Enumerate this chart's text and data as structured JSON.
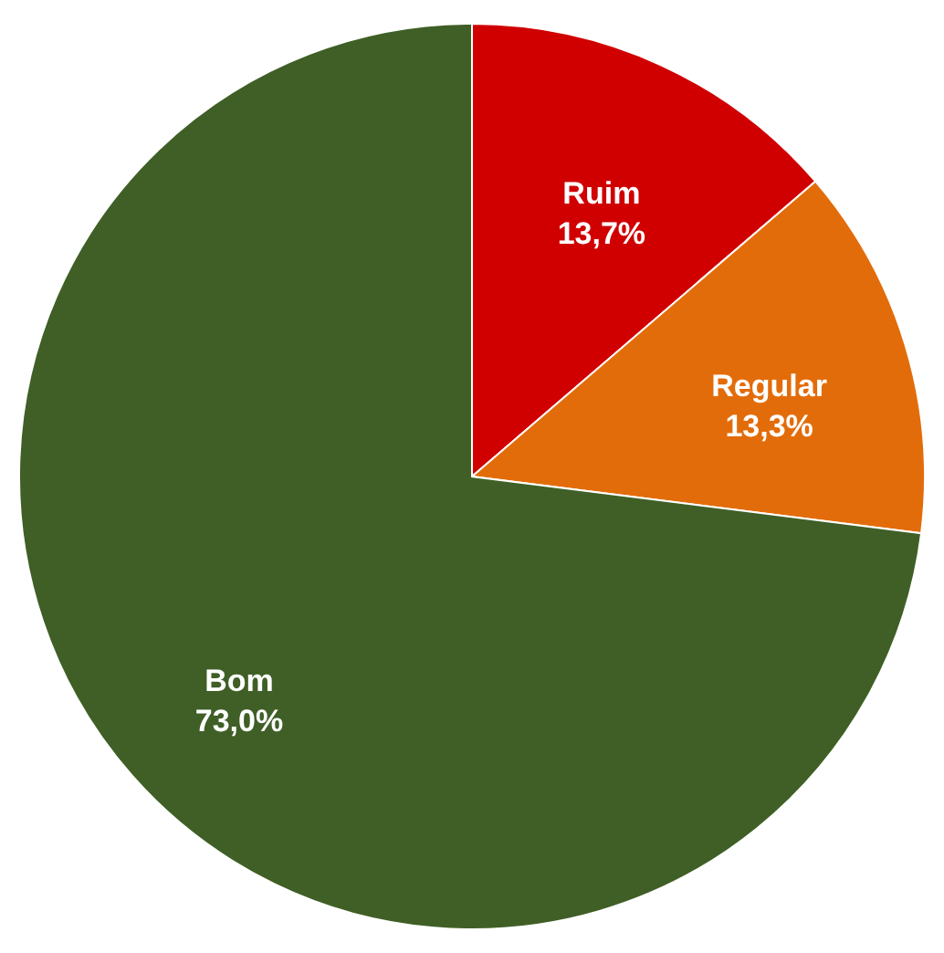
{
  "chart_data": {
    "type": "pie",
    "categories": [
      "Ruim",
      "Regular",
      "Bom"
    ],
    "values": [
      13.7,
      13.3,
      73.0
    ],
    "colors": [
      "#d00000",
      "#e36c0a",
      "#3f5f26"
    ],
    "value_labels": [
      "13,7%",
      "13,3%",
      "73,0%"
    ]
  }
}
